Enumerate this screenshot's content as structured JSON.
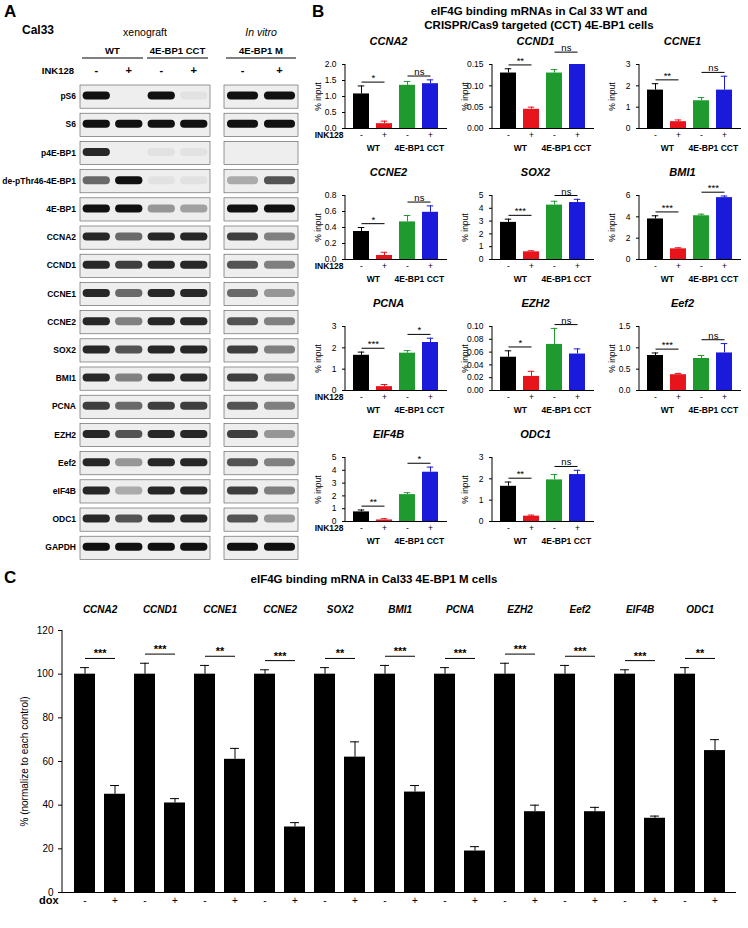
{
  "panel_a": {
    "letter": "A",
    "cell_line": "Cal33",
    "groups": [
      {
        "label": "xenograft",
        "lanes": 4
      },
      {
        "label": "In vitro",
        "lanes": 2
      }
    ],
    "conditions": [
      {
        "label": "WT",
        "lanes": 2
      },
      {
        "label": "4E-BP1 CCT",
        "lanes": 2
      },
      {
        "label": "4E-BP1 M",
        "lanes": 2
      }
    ],
    "treatment_label": "INK128",
    "treatment": [
      "-",
      "+",
      "-",
      "+",
      "-",
      "+"
    ],
    "rows": [
      {
        "label": "pS6",
        "band_intensity": [
          1,
          0,
          1,
          0.05,
          1,
          1
        ]
      },
      {
        "label": "S6",
        "band_intensity": [
          1,
          1,
          1,
          1,
          1,
          1
        ]
      },
      {
        "label": "p4E-BP1",
        "band_intensity": [
          0.9,
          0,
          0.05,
          0.05,
          0,
          0
        ]
      },
      {
        "label": "de-pThr46-4E-BP1",
        "band_intensity": [
          0.6,
          1,
          0.05,
          0.05,
          0.3,
          0.7
        ]
      },
      {
        "label": "4E-BP1",
        "band_intensity": [
          1,
          1,
          0.4,
          0.35,
          1,
          1
        ]
      },
      {
        "label": "CCNA2",
        "band_intensity": [
          0.9,
          0.6,
          0.9,
          0.9,
          0.8,
          0.5
        ]
      },
      {
        "label": "CCND1",
        "band_intensity": [
          0.9,
          0.8,
          0.9,
          0.9,
          0.7,
          0.5
        ]
      },
      {
        "label": "CCNE1",
        "band_intensity": [
          0.9,
          0.6,
          0.9,
          0.9,
          0.6,
          0.4
        ]
      },
      {
        "label": "CCNE2",
        "band_intensity": [
          0.9,
          0.5,
          0.9,
          0.9,
          0.7,
          0.5
        ]
      },
      {
        "label": "SOX2",
        "band_intensity": [
          0.9,
          0.7,
          0.9,
          0.9,
          0.8,
          0.5
        ]
      },
      {
        "label": "BMI1",
        "band_intensity": [
          0.9,
          0.5,
          0.9,
          0.9,
          0.8,
          0.5
        ]
      },
      {
        "label": "PCNA",
        "band_intensity": [
          0.8,
          0.6,
          0.8,
          0.8,
          0.7,
          0.5
        ]
      },
      {
        "label": "EZH2",
        "band_intensity": [
          0.9,
          0.7,
          0.9,
          0.9,
          0.8,
          0.4
        ]
      },
      {
        "label": "Eef2",
        "band_intensity": [
          0.9,
          0.4,
          0.9,
          0.9,
          0.7,
          0.5
        ]
      },
      {
        "label": "eIF4B",
        "band_intensity": [
          0.9,
          0.3,
          0.9,
          0.9,
          0.8,
          0.5
        ]
      },
      {
        "label": "ODC1",
        "band_intensity": [
          0.9,
          0.7,
          0.9,
          0.9,
          0.7,
          0.4
        ]
      },
      {
        "label": "GAPDH",
        "band_intensity": [
          1,
          1,
          1,
          1,
          1,
          1
        ]
      }
    ]
  },
  "panel_b": {
    "letter": "B",
    "title": [
      "eIF4G binding mRNAs in Cal 33 WT and",
      "CRISPR/Cas9 targeted (CCT) 4E-BP1 cells"
    ]
  },
  "chart_data": [
    {
      "type": "bar",
      "title": "CCNA2",
      "ylabel": "% input",
      "treatment_label": "INK128",
      "categories": [
        "-",
        "+",
        "-",
        "+"
      ],
      "groups": [
        "WT",
        "4E-BP1 CCT"
      ],
      "values": [
        1.08,
        0.15,
        1.35,
        1.4
      ],
      "errors": [
        0.25,
        0.08,
        0.12,
        0.12
      ],
      "colors": [
        "#000000",
        "#e8141b",
        "#1f9a2e",
        "#1a1adb"
      ],
      "significance": [
        "*",
        "ns"
      ],
      "ylim": [
        0,
        2
      ],
      "yticks": [
        {
          "value": 0,
          "label": "0.0"
        },
        {
          "value": 0.5,
          "label": "0.5"
        },
        {
          "value": 1,
          "label": "1.0"
        },
        {
          "value": 1.5,
          "label": "1.5"
        },
        {
          "value": 2,
          "label": "2.0"
        }
      ]
    },
    {
      "type": "bar",
      "title": "CCND1",
      "ylabel": "% input",
      "categories": [
        "-",
        "+",
        "-",
        "+"
      ],
      "groups": [
        "WT",
        "4E-BP1 CCT"
      ],
      "values": [
        0.13,
        0.045,
        0.13,
        0.15
      ],
      "errors": [
        0.01,
        0.005,
        0.008,
        0.02
      ],
      "colors": [
        "#000000",
        "#e8141b",
        "#1f9a2e",
        "#1a1adb"
      ],
      "significance": [
        "**",
        "ns"
      ],
      "ylim": [
        0,
        0.15
      ],
      "yticks": [
        {
          "value": 0,
          "label": "0.00"
        },
        {
          "value": 0.05,
          "label": "0.05"
        },
        {
          "value": 0.1,
          "label": "0.10"
        },
        {
          "value": 0.15,
          "label": "0.15"
        }
      ]
    },
    {
      "type": "bar",
      "title": "CCNE1",
      "ylabel": "% input",
      "categories": [
        "-",
        "+",
        "-",
        "+"
      ],
      "groups": [
        "WT",
        "4E-BP1 CCT"
      ],
      "values": [
        1.8,
        0.32,
        1.3,
        1.8
      ],
      "errors": [
        0.3,
        0.08,
        0.15,
        0.65
      ],
      "colors": [
        "#000000",
        "#e8141b",
        "#1f9a2e",
        "#1a1adb"
      ],
      "significance": [
        "**",
        "ns"
      ],
      "ylim": [
        0,
        3
      ],
      "yticks": [
        0,
        1,
        2,
        3
      ]
    },
    {
      "type": "bar",
      "title": "CCNE2",
      "ylabel": "% input",
      "treatment_label": "INK128",
      "categories": [
        "-",
        "+",
        "-",
        "+"
      ],
      "groups": [
        "WT",
        "4E-BP1 CCT"
      ],
      "values": [
        0.35,
        0.05,
        0.47,
        0.59
      ],
      "errors": [
        0.05,
        0.04,
        0.08,
        0.08
      ],
      "colors": [
        "#000000",
        "#e8141b",
        "#1f9a2e",
        "#1a1adb"
      ],
      "significance": [
        "*",
        "ns"
      ],
      "ylim": [
        0,
        0.8
      ],
      "yticks": [
        {
          "value": 0,
          "label": "0.0"
        },
        {
          "value": 0.2,
          "label": "0.2"
        },
        {
          "value": 0.4,
          "label": "0.4"
        },
        {
          "value": 0.6,
          "label": "0.6"
        },
        {
          "value": 0.8,
          "label": "0.8"
        }
      ]
    },
    {
      "type": "bar",
      "title": "SOX2",
      "ylabel": "% input",
      "categories": [
        "-",
        "+",
        "-",
        "+"
      ],
      "groups": [
        "WT",
        "4E-BP1 CCT"
      ],
      "values": [
        2.9,
        0.6,
        4.25,
        4.45
      ],
      "errors": [
        0.25,
        0.08,
        0.3,
        0.25
      ],
      "colors": [
        "#000000",
        "#e8141b",
        "#1f9a2e",
        "#1a1adb"
      ],
      "significance": [
        "***",
        "ns"
      ],
      "ylim": [
        0,
        5
      ],
      "yticks": [
        0,
        1,
        2,
        3,
        4,
        5
      ]
    },
    {
      "type": "bar",
      "title": "BMI1",
      "ylabel": "% input",
      "categories": [
        "-",
        "+",
        "-",
        "+"
      ],
      "groups": [
        "WT",
        "4E-BP1 CCT"
      ],
      "values": [
        3.8,
        1.0,
        4.1,
        5.8
      ],
      "errors": [
        0.3,
        0.1,
        0.15,
        0.15
      ],
      "colors": [
        "#000000",
        "#e8141b",
        "#1f9a2e",
        "#1a1adb"
      ],
      "significance": [
        "***",
        "***"
      ],
      "ylim": [
        0,
        6
      ],
      "yticks": [
        0,
        2,
        4,
        6
      ]
    },
    {
      "type": "bar",
      "title": "PCNA",
      "ylabel": "% input",
      "treatment_label": "INK128",
      "categories": [
        "-",
        "+",
        "-",
        "+"
      ],
      "groups": [
        "WT",
        "4E-BP1 CCT"
      ],
      "values": [
        1.65,
        0.18,
        1.75,
        2.25
      ],
      "errors": [
        0.15,
        0.1,
        0.12,
        0.2
      ],
      "colors": [
        "#000000",
        "#e8141b",
        "#1f9a2e",
        "#1a1adb"
      ],
      "significance": [
        "***",
        "*"
      ],
      "ylim": [
        0,
        3
      ],
      "yticks": [
        0,
        1,
        2,
        3
      ]
    },
    {
      "type": "bar",
      "title": "EZH2",
      "ylabel": "% input",
      "categories": [
        "-",
        "+",
        "-",
        "+"
      ],
      "groups": [
        "WT",
        "4E-BP1 CCT"
      ],
      "values": [
        0.052,
        0.022,
        0.072,
        0.057
      ],
      "errors": [
        0.01,
        0.008,
        0.025,
        0.008
      ],
      "colors": [
        "#000000",
        "#e8141b",
        "#1f9a2e",
        "#1a1adb"
      ],
      "significance": [
        "*",
        "ns"
      ],
      "ylim": [
        0,
        0.1
      ],
      "yticks": [
        {
          "value": 0,
          "label": "0.00"
        },
        {
          "value": 0.02,
          "label": "0.02"
        },
        {
          "value": 0.04,
          "label": "0.04"
        },
        {
          "value": 0.06,
          "label": "0.06"
        },
        {
          "value": 0.08,
          "label": "0.08"
        },
        {
          "value": 0.1,
          "label": "0.10"
        }
      ]
    },
    {
      "type": "bar",
      "title": "Eef2",
      "ylabel": "% input",
      "categories": [
        "-",
        "+",
        "-",
        "+"
      ],
      "groups": [
        "WT",
        "4E-BP1 CCT"
      ],
      "values": [
        0.82,
        0.37,
        0.75,
        0.88
      ],
      "errors": [
        0.06,
        0.03,
        0.07,
        0.22
      ],
      "colors": [
        "#000000",
        "#e8141b",
        "#1f9a2e",
        "#1a1adb"
      ],
      "significance": [
        "***",
        "ns"
      ],
      "ylim": [
        0,
        1.5
      ],
      "yticks": [
        {
          "value": 0,
          "label": "0.0"
        },
        {
          "value": 0.5,
          "label": "0.5"
        },
        {
          "value": 1,
          "label": "1.0"
        },
        {
          "value": 1.5,
          "label": "1.5"
        }
      ]
    },
    {
      "type": "bar",
      "title": "EIF4B",
      "ylabel": "% input",
      "treatment_label": "INK128",
      "categories": [
        "-",
        "+",
        "-",
        "+"
      ],
      "groups": [
        "WT",
        "4E-BP1 CCT"
      ],
      "values": [
        0.75,
        0.12,
        2.1,
        3.85
      ],
      "errors": [
        0.15,
        0.1,
        0.15,
        0.4
      ],
      "colors": [
        "#000000",
        "#e8141b",
        "#1f9a2e",
        "#1a1adb"
      ],
      "significance": [
        "**",
        "*"
      ],
      "ylim": [
        0,
        5
      ],
      "yticks": [
        0,
        1,
        2,
        3,
        4,
        5
      ]
    },
    {
      "type": "bar",
      "title": "ODC1",
      "ylabel": "% input",
      "categories": [
        "-",
        "+",
        "-",
        "+"
      ],
      "groups": [
        "WT",
        "4E-BP1 CCT"
      ],
      "values": [
        1.65,
        0.25,
        1.95,
        2.2
      ],
      "errors": [
        0.2,
        0.05,
        0.25,
        0.2
      ],
      "colors": [
        "#000000",
        "#e8141b",
        "#1f9a2e",
        "#1a1adb"
      ],
      "significance": [
        "**",
        "ns"
      ],
      "ylim": [
        0,
        3
      ],
      "yticks": [
        0,
        1,
        2,
        3
      ]
    },
    {
      "type": "bar",
      "letter": "C",
      "title": "eIF4G binding mRNA in  Cal33 4E-BP1 M cells",
      "ylabel": "% (normalize to each control)",
      "treatment_label": "dox",
      "categories": [
        "CCNA2",
        "CCND1",
        "CCNE1",
        "CCNE2",
        "SOX2",
        "BMI1",
        "PCNA",
        "EZH2",
        "Eef2",
        "EIF4B",
        "ODC1"
      ],
      "series": [
        {
          "name": "-",
          "color": "#000000",
          "values": [
            100,
            100,
            100,
            100,
            100,
            100,
            100,
            100,
            100,
            100,
            100
          ],
          "errors": [
            3,
            5,
            4,
            2,
            3,
            4,
            3,
            5,
            4,
            2,
            3
          ]
        },
        {
          "name": "+",
          "color": "#000000",
          "values": [
            45,
            41,
            61,
            30,
            62,
            46,
            19,
            37,
            37,
            34,
            65
          ],
          "errors": [
            4,
            2,
            5,
            2,
            7,
            3,
            2,
            3,
            2,
            1,
            5
          ]
        }
      ],
      "significance": [
        "***",
        "***",
        "**",
        "***",
        "**",
        "***",
        "***",
        "***",
        "***",
        "***",
        "**"
      ],
      "ylim": [
        0,
        120
      ],
      "yticks": [
        0,
        20,
        40,
        60,
        80,
        100,
        120
      ]
    }
  ]
}
